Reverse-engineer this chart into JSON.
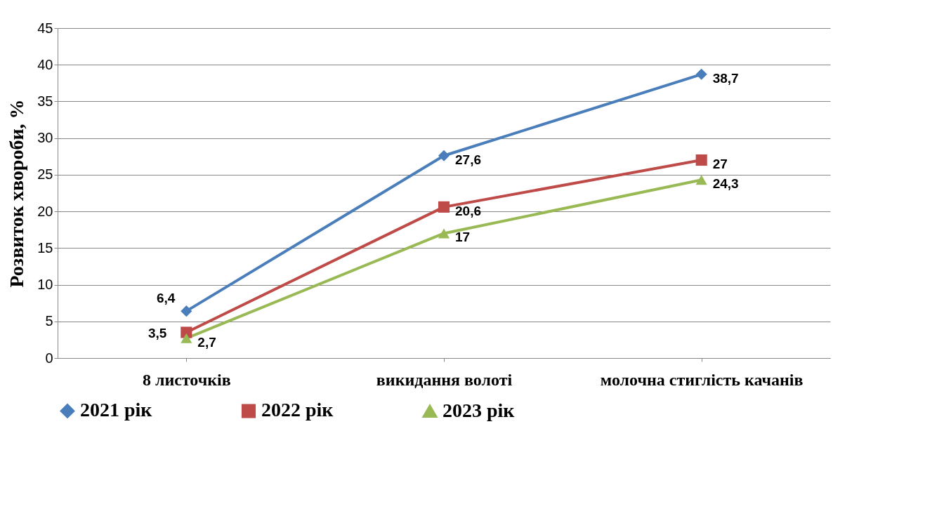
{
  "chart_data": {
    "type": "line",
    "ylabel": "Розвиток хвороби, %",
    "categories": [
      "8 листочків",
      "викидання волоті",
      "молочна стиглість качанів"
    ],
    "ylim": [
      0,
      45
    ],
    "yticks": [
      0,
      5,
      10,
      15,
      20,
      25,
      30,
      35,
      40,
      45
    ],
    "grid": "y",
    "legend": "bottom",
    "line_style": "solid",
    "series": [
      {
        "name": "2021 рік",
        "color": "#4a7ebb",
        "marker": "diamond",
        "values": [
          6.4,
          27.6,
          38.7
        ],
        "value_labels": [
          "6,4",
          "27,6",
          "38,7"
        ]
      },
      {
        "name": "2022 рік",
        "color": "#be4b48",
        "marker": "square",
        "values": [
          3.5,
          20.6,
          27
        ],
        "value_labels": [
          "3,5",
          "20,6",
          "27"
        ]
      },
      {
        "name": "2023 рік",
        "color": "#98b954",
        "marker": "triangle",
        "values": [
          2.7,
          17,
          24.3
        ],
        "value_labels": [
          "2,7",
          "17",
          "24,3"
        ]
      }
    ]
  }
}
